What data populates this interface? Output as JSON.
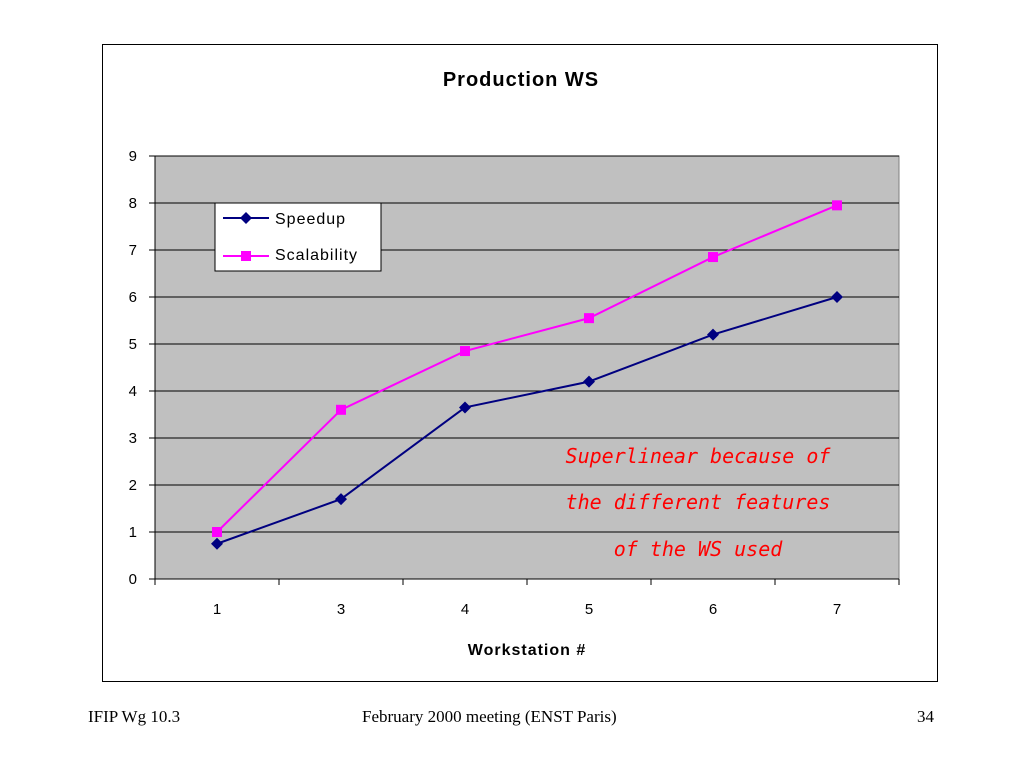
{
  "chart_data": {
    "type": "line",
    "title": "Production WS",
    "xlabel": "Workstation #",
    "ylabel": "",
    "categories": [
      "1",
      "3",
      "4",
      "5",
      "6",
      "7"
    ],
    "ylim": [
      0,
      9
    ],
    "yticks": [
      "0",
      "1",
      "2",
      "3",
      "4",
      "5",
      "6",
      "7",
      "8",
      "9"
    ],
    "grid": true,
    "legend_position": "top-left",
    "series": [
      {
        "name": "Speedup",
        "color": "#000080",
        "marker": "diamond",
        "values": [
          0.75,
          1.7,
          3.65,
          4.2,
          5.2,
          6.0
        ]
      },
      {
        "name": "Scalability",
        "color": "#ff00ff",
        "marker": "square",
        "values": [
          1.0,
          3.6,
          4.85,
          5.55,
          6.85,
          7.95
        ]
      }
    ],
    "annotation": {
      "lines": [
        "Superlinear because of",
        "the different features",
        "of the WS used"
      ],
      "color": "#ff0000"
    },
    "plot_background": "#c0c0c0"
  },
  "footer": {
    "left": "IFIP Wg 10.3",
    "center": "February 2000 meeting (ENST Paris)",
    "right": "34"
  }
}
